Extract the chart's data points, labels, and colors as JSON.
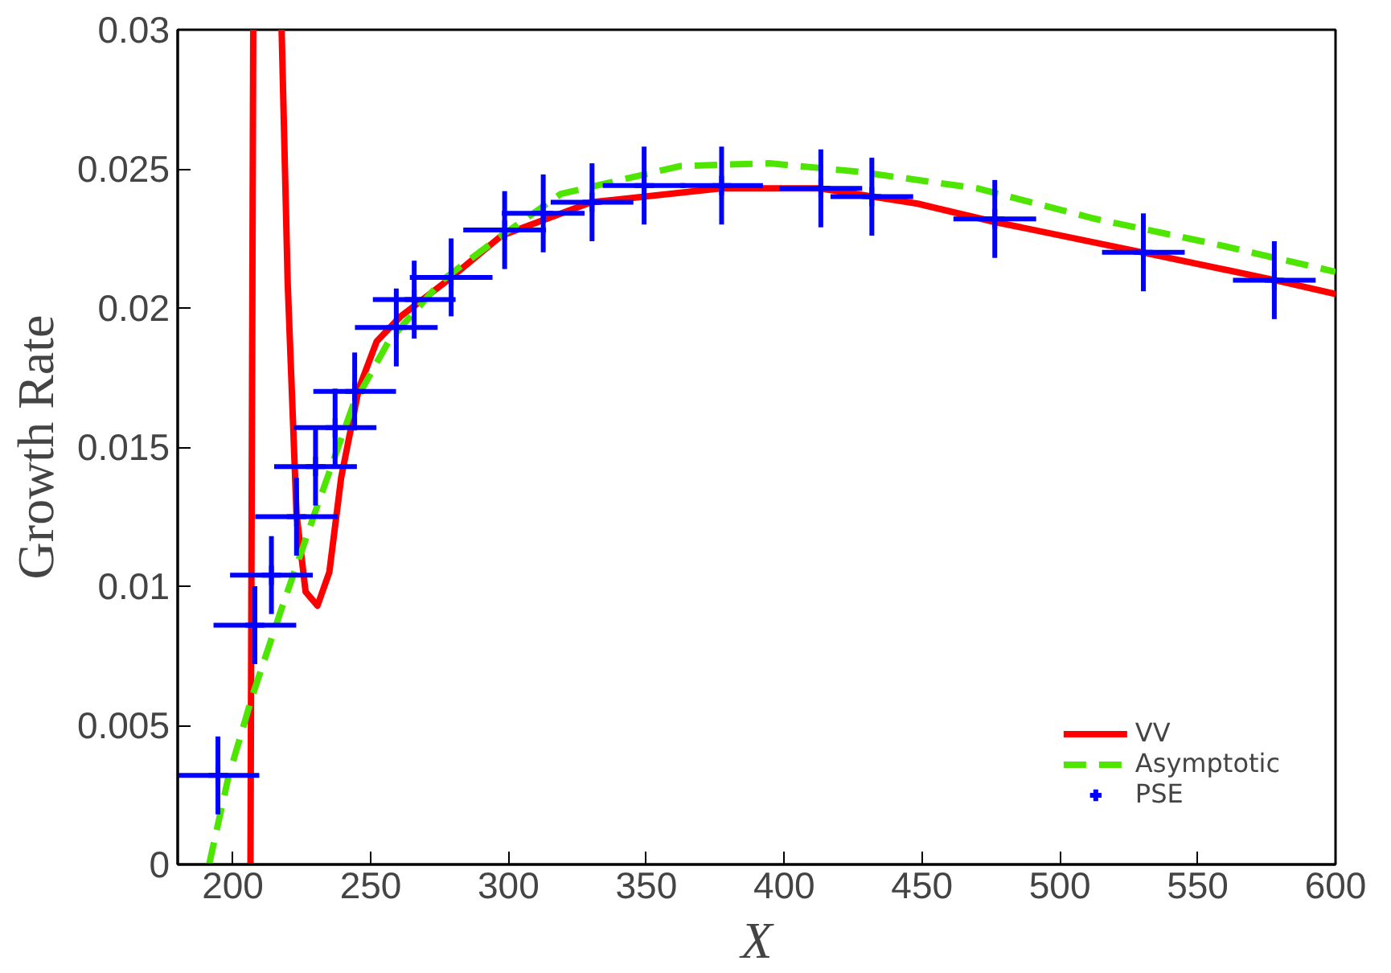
{
  "chart_data": {
    "type": "line",
    "xlabel": "X",
    "ylabel": "Growth Rate",
    "xlim": [
      180,
      600
    ],
    "xticks": [
      200,
      250,
      300,
      350,
      400,
      450,
      500,
      550,
      600
    ],
    "ylim": [
      0,
      0.03
    ],
    "yticks": [
      0,
      0.005,
      0.01,
      0.015,
      0.02,
      0.025,
      0.03
    ],
    "grid": false,
    "legend": "bottom right",
    "series": [
      {
        "name": "VV",
        "color": "#ff0000",
        "line_style": "solid",
        "marker": "none",
        "x": [
          206.4,
          207.4,
          212,
          217.7,
          219.9,
          223.1,
          226.4,
          230.7,
          235,
          239.3,
          245.7,
          252.2,
          260.9,
          278,
          297.5,
          330,
          377,
          413,
          448.4,
          476,
          530,
          578,
          600
        ],
        "values": [
          0,
          0.03,
          null,
          0.03,
          0.0209,
          0.0126,
          0.0098,
          0.0093,
          0.0105,
          0.0139,
          0.0171,
          0.0188,
          0.0197,
          0.021,
          0.0226,
          0.0238,
          0.0243,
          0.0243,
          0.02375,
          0.0231,
          0.022,
          0.021,
          0.0205
        ]
      },
      {
        "name": "Asymptotic",
        "color": "#4ee600",
        "line_style": "dashed",
        "marker": "none",
        "x": [
          191.4,
          198.3,
          206.9,
          217.7,
          230.7,
          243.6,
          256.5,
          276,
          297.5,
          319,
          362.2,
          394.5,
          426.8,
          470,
          513,
          556.2,
          600
        ],
        "values": [
          0,
          0.0031,
          0.006,
          0.0092,
          0.0129,
          0.0165,
          0.0188,
          0.021,
          0.0226,
          0.0241,
          0.0251,
          0.0252,
          0.0249,
          0.0243,
          0.0232,
          0.0223,
          0.0213
        ]
      },
      {
        "name": "PSE",
        "color": "#0000ff",
        "type": "scatter",
        "marker": "cross",
        "x": [
          194.6,
          208,
          214,
          223.1,
          230,
          237.1,
          244.2,
          259.3,
          265.8,
          279.2,
          298.6,
          312.6,
          330.3,
          349.2,
          377.3,
          413.3,
          431.8,
          476.4,
          530.3,
          577.8
        ],
        "values": [
          0.0032,
          0.0086,
          0.0104,
          0.0125,
          0.0143,
          0.0157,
          0.017,
          0.0193,
          0.0203,
          0.0211,
          0.0228,
          0.0234,
          0.0238,
          0.0244,
          0.0244,
          0.0243,
          0.024,
          0.0232,
          0.022,
          0.021
        ],
        "errors": [
          0.0014,
          0.0014,
          0.0014,
          0.0014,
          0.0014,
          0.0014,
          0.0014,
          0.0014,
          0.0014,
          0.0014,
          0.0014,
          0.0014,
          0.0014,
          0.0014,
          0.0014,
          0.0014,
          0.0014,
          0.0014,
          0.0014,
          0.0014
        ],
        "xerrors": [
          15,
          15,
          15,
          15,
          15,
          15,
          15,
          15,
          15,
          15,
          15,
          15,
          15,
          15,
          15,
          15,
          15,
          15,
          15,
          15
        ]
      }
    ]
  }
}
